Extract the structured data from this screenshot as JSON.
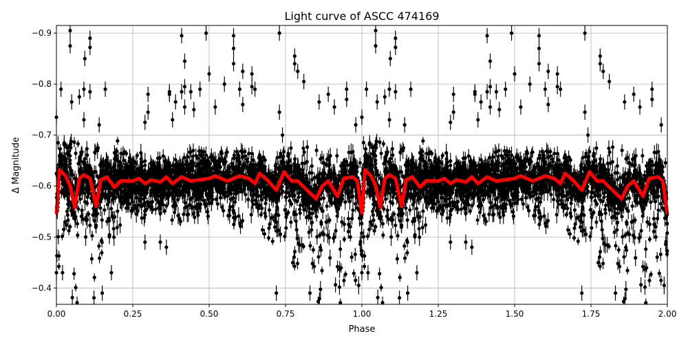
{
  "chart_data": {
    "type": "scatter",
    "title": "Light curve of ASCC 474169",
    "xlabel": "Phase",
    "ylabel": "Δ Magnitude",
    "xlim": [
      0,
      2
    ],
    "ylim": [
      -0.915,
      -0.368
    ],
    "y_inverted": true,
    "grid": true,
    "xticks": [
      "0.00",
      "0.25",
      "0.50",
      "0.75",
      "1.00",
      "1.25",
      "1.50",
      "1.75",
      "2.00"
    ],
    "xtick_values": [
      0,
      0.25,
      0.5,
      0.75,
      1.0,
      1.25,
      1.5,
      1.75,
      2.0
    ],
    "yticks": [
      "−0.9",
      "−0.8",
      "−0.7",
      "−0.6",
      "−0.5",
      "−0.4"
    ],
    "ytick_values": [
      -0.9,
      -0.8,
      -0.7,
      -0.6,
      -0.5,
      -0.4
    ],
    "period_repeated": true,
    "colors": {
      "points": "#000000",
      "model": "#ff0000",
      "grid": "#b0b0b0"
    },
    "model_curve": {
      "phase": [
        0.0,
        0.01,
        0.03,
        0.045,
        0.06,
        0.075,
        0.09,
        0.11,
        0.13,
        0.145,
        0.165,
        0.19,
        0.21,
        0.25,
        0.27,
        0.29,
        0.31,
        0.34,
        0.36,
        0.38,
        0.41,
        0.44,
        0.5,
        0.52,
        0.56,
        0.6,
        0.63,
        0.65,
        0.665,
        0.69,
        0.72,
        0.745,
        0.77,
        0.79,
        0.81,
        0.85,
        0.87,
        0.89,
        0.92,
        0.94,
        0.97,
        0.985,
        1.0
      ],
      "magnitude": [
        -0.545,
        -0.632,
        -0.62,
        -0.6,
        -0.558,
        -0.615,
        -0.622,
        -0.615,
        -0.56,
        -0.612,
        -0.618,
        -0.598,
        -0.61,
        -0.61,
        -0.615,
        -0.605,
        -0.612,
        -0.608,
        -0.618,
        -0.605,
        -0.618,
        -0.61,
        -0.615,
        -0.62,
        -0.61,
        -0.62,
        -0.615,
        -0.605,
        -0.625,
        -0.612,
        -0.592,
        -0.628,
        -0.61,
        -0.61,
        -0.598,
        -0.575,
        -0.6,
        -0.61,
        -0.58,
        -0.615,
        -0.618,
        -0.61,
        -0.545
      ]
    },
    "bulk_envelope": {
      "phase_step": 0.02,
      "bright": [
        -0.69,
        -0.69,
        -0.69,
        -0.69,
        -0.68,
        -0.68,
        -0.69,
        -0.68,
        -0.68,
        -0.68,
        -0.7,
        -0.67,
        -0.66,
        -0.66,
        -0.67,
        -0.66,
        -0.66,
        -0.66,
        -0.66,
        -0.67,
        -0.66,
        -0.66,
        -0.67,
        -0.67,
        -0.67,
        -0.68,
        -0.68,
        -0.67,
        -0.67,
        -0.67,
        -0.68,
        -0.67,
        -0.67,
        -0.66,
        -0.67,
        -0.67,
        -0.66,
        -0.68,
        -0.68,
        -0.67,
        -0.68,
        -0.69,
        -0.68,
        -0.67,
        -0.67,
        -0.67,
        -0.66,
        -0.66,
        -0.67,
        -0.68,
        -0.69
      ],
      "faint": [
        -0.42,
        -0.5,
        -0.5,
        -0.37,
        -0.52,
        -0.5,
        -0.37,
        -0.45,
        -0.53,
        -0.48,
        -0.48,
        -0.55,
        -0.55,
        -0.54,
        -0.53,
        -0.55,
        -0.55,
        -0.54,
        -0.53,
        -0.52,
        -0.49,
        -0.53,
        -0.54,
        -0.53,
        -0.55,
        -0.54,
        -0.55,
        -0.55,
        -0.53,
        -0.52,
        -0.52,
        -0.55,
        -0.54,
        -0.53,
        -0.5,
        -0.48,
        -0.51,
        -0.47,
        -0.5,
        -0.4,
        -0.45,
        -0.5,
        -0.42,
        -0.37,
        -0.5,
        -0.42,
        -0.37,
        -0.4,
        -0.45,
        -0.37,
        -0.42
      ]
    },
    "outlier_points": [
      [
        0.045,
        -0.905
      ],
      [
        0.045,
        -0.875
      ],
      [
        0.093,
        -0.85
      ],
      [
        0.05,
        -0.765
      ],
      [
        0.015,
        -0.79
      ],
      [
        0.09,
        -0.79
      ],
      [
        0.11,
        -0.89
      ],
      [
        0.11,
        -0.872
      ],
      [
        0.11,
        -0.785
      ],
      [
        0.16,
        -0.79
      ],
      [
        0.09,
        -0.73
      ],
      [
        0.0,
        -0.735
      ],
      [
        0.075,
        -0.775
      ],
      [
        0.14,
        -0.72
      ],
      [
        0.3,
        -0.78
      ],
      [
        0.3,
        -0.745
      ],
      [
        0.29,
        -0.725
      ],
      [
        0.37,
        -0.785
      ],
      [
        0.37,
        -0.78
      ],
      [
        0.41,
        -0.895
      ],
      [
        0.42,
        -0.845
      ],
      [
        0.41,
        -0.785
      ],
      [
        0.42,
        -0.795
      ],
      [
        0.42,
        -0.755
      ],
      [
        0.38,
        -0.73
      ],
      [
        0.39,
        -0.765
      ],
      [
        0.44,
        -0.785
      ],
      [
        0.45,
        -0.75
      ],
      [
        0.49,
        -0.9
      ],
      [
        0.47,
        -0.79
      ],
      [
        0.5,
        -0.82
      ],
      [
        0.52,
        -0.755
      ],
      [
        0.55,
        -0.8
      ],
      [
        0.58,
        -0.895
      ],
      [
        0.58,
        -0.87
      ],
      [
        0.58,
        -0.84
      ],
      [
        0.61,
        -0.825
      ],
      [
        0.6,
        -0.79
      ],
      [
        0.64,
        -0.82
      ],
      [
        0.64,
        -0.795
      ],
      [
        0.61,
        -0.76
      ],
      [
        0.65,
        -0.79
      ],
      [
        0.73,
        -0.9
      ],
      [
        0.73,
        -0.745
      ],
      [
        0.78,
        -0.855
      ],
      [
        0.78,
        -0.84
      ],
      [
        0.79,
        -0.825
      ],
      [
        0.81,
        -0.805
      ],
      [
        0.74,
        -0.7
      ],
      [
        0.89,
        -0.78
      ],
      [
        0.95,
        -0.79
      ],
      [
        0.95,
        -0.77
      ],
      [
        0.91,
        -0.755
      ],
      [
        0.86,
        -0.765
      ],
      [
        0.98,
        -0.72
      ],
      [
        0.0,
        -0.43
      ],
      [
        0.02,
        -0.43
      ],
      [
        0.15,
        -0.39
      ],
      [
        0.18,
        -0.43
      ],
      [
        0.72,
        -0.39
      ],
      [
        0.29,
        -0.49
      ],
      [
        0.34,
        -0.49
      ],
      [
        0.36,
        -0.48
      ],
      [
        0.83,
        -0.39
      ]
    ],
    "typical_error": 0.015
  }
}
